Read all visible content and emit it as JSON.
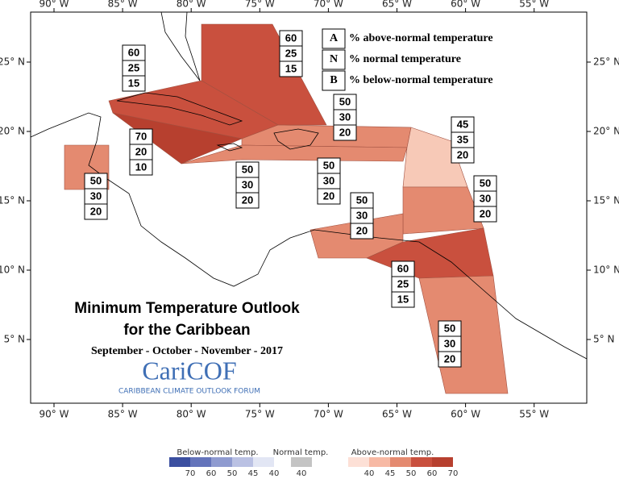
{
  "map": {
    "title_line1": "Minimum Temperature Outlook",
    "title_line2": "for the Caribbean",
    "subtitle": "September - October - November - 2017",
    "logo": "CariCOF",
    "logo_caption": "CARIBBEAN CLIMATE OUTLOOK FORUM",
    "key": [
      {
        "letter": "A",
        "text": "% above-normal temperature"
      },
      {
        "letter": "N",
        "text": "% normal temperature"
      },
      {
        "letter": "B",
        "text": "% below-normal temperature"
      }
    ],
    "x_axis_labels": [
      "90° W",
      "85° W",
      "80° W",
      "75° W",
      "70° W",
      "65° W",
      "60° W",
      "55° W"
    ],
    "y_axis_labels": [
      "25° N",
      "20° N",
      "15° N",
      "10° N",
      "5° N"
    ],
    "regions": [
      {
        "A": 60,
        "N": 25,
        "B": 15
      },
      {
        "A": 60,
        "N": 25,
        "B": 15
      },
      {
        "A": 70,
        "N": 20,
        "B": 10
      },
      {
        "A": 50,
        "N": 30,
        "B": 20
      },
      {
        "A": 50,
        "N": 30,
        "B": 20
      },
      {
        "A": 50,
        "N": 30,
        "B": 20
      },
      {
        "A": 50,
        "N": 30,
        "B": 20
      },
      {
        "A": 45,
        "N": 35,
        "B": 20
      },
      {
        "A": 50,
        "N": 30,
        "B": 20
      },
      {
        "A": 50,
        "N": 30,
        "B": 20
      },
      {
        "A": 60,
        "N": 25,
        "B": 15
      },
      {
        "A": 50,
        "N": 30,
        "B": 20
      }
    ]
  },
  "legend": {
    "below": {
      "label": "Below-normal temp.",
      "ticks": [
        70,
        60,
        50,
        45,
        40
      ]
    },
    "normal": {
      "label": "Normal temp.",
      "ticks": [
        40
      ]
    },
    "above": {
      "label": "Above-normal temp.",
      "ticks": [
        40,
        45,
        50,
        60,
        70
      ]
    }
  }
}
